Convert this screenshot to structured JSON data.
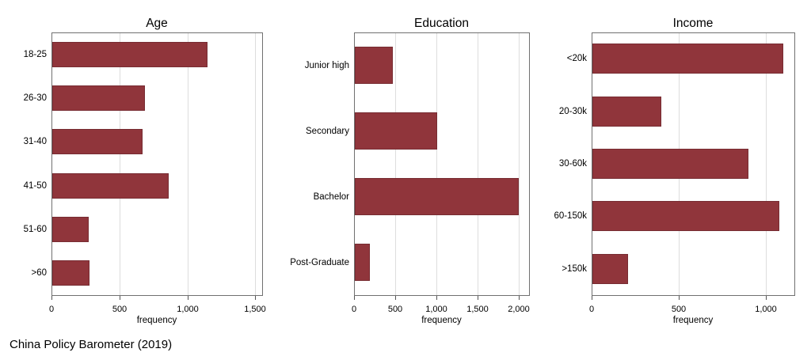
{
  "caption": "China Policy Barometer (2019)",
  "colors": {
    "bar_fill": "#90353b",
    "bar_edge": "#772c32",
    "plot_border": "#707070",
    "gridline": "#dddddd",
    "text": "#000000",
    "background": "#ffffff"
  },
  "chart_data": [
    {
      "type": "bar",
      "orientation": "horizontal",
      "title": "Age",
      "categories": [
        "18-25",
        "26-30",
        "31-40",
        "41-50",
        "51-60",
        ">60"
      ],
      "values": [
        1150,
        690,
        670,
        860,
        275,
        280
      ],
      "xlabel": "frequency",
      "xlim": [
        0,
        1550
      ],
      "xticks": [
        0,
        500,
        1000,
        1500
      ],
      "grid": true,
      "legend": "none"
    },
    {
      "type": "bar",
      "orientation": "horizontal",
      "title": "Education",
      "categories": [
        "Junior high",
        "Secondary",
        "Bachelor",
        "Post-Graduate"
      ],
      "values": [
        470,
        1010,
        2000,
        190
      ],
      "xlabel": "frequency",
      "xlim": [
        0,
        2120
      ],
      "xticks": [
        0,
        500,
        1000,
        1500,
        2000
      ],
      "grid": true,
      "legend": "none"
    },
    {
      "type": "bar",
      "orientation": "horizontal",
      "title": "Income",
      "categories": [
        "<20k",
        "20-30k",
        "30-60k",
        "60-150k",
        ">150k"
      ],
      "values": [
        1100,
        400,
        900,
        1080,
        210
      ],
      "xlabel": "frequency",
      "xlim": [
        0,
        1165
      ],
      "xticks": [
        0,
        500,
        1000
      ],
      "grid": true,
      "legend": "none"
    }
  ]
}
